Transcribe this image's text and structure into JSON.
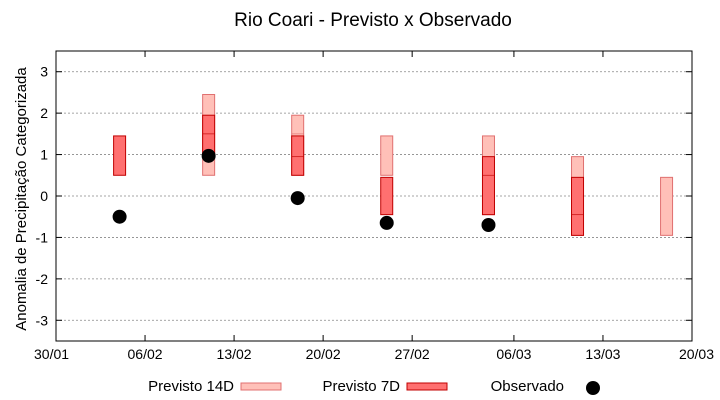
{
  "chart_data": {
    "type": "floating-bar",
    "title": "Rio Coari - Previsto x Observado",
    "xlabel": "",
    "ylabel": "Anomalia de Precipitação Categorizada",
    "ylim": [
      -3.5,
      3.5
    ],
    "yticks": [
      "-3",
      "-2",
      "-1",
      "0",
      "1",
      "2",
      "3"
    ],
    "xticks": [
      "30/01",
      "06/02",
      "13/02",
      "20/02",
      "27/02",
      "06/03",
      "13/03",
      "20/03"
    ],
    "grid": true,
    "legend_position": "bottom",
    "series": [
      {
        "name": "Previsto 14D",
        "color": "#ffc0b8",
        "edge": "#e07070",
        "ranges": [
          {
            "x": "11/02",
            "low": 0.5,
            "mid": 1.5,
            "high": 2.45
          },
          {
            "x": "18/02",
            "low": 0.5,
            "mid": 1.5,
            "high": 1.95
          },
          {
            "x": "25/02",
            "low": 0.5,
            "mid": 0.5,
            "high": 1.45
          },
          {
            "x": "04/03",
            "low": -0.45,
            "mid": 0.5,
            "high": 1.45
          },
          {
            "x": "11/03",
            "low": -0.95,
            "mid": -0.45,
            "high": 0.95
          },
          {
            "x": "18/03",
            "low": -0.95,
            "mid": -0.95,
            "high": 0.45
          }
        ]
      },
      {
        "name": "Previsto 7D",
        "color": "#ff7070",
        "edge": "#c00000",
        "ranges": [
          {
            "x": "04/02",
            "low": 0.5,
            "mid": 0.5,
            "high": 1.45
          },
          {
            "x": "11/02",
            "low": 0.95,
            "mid": 1.5,
            "high": 1.95
          },
          {
            "x": "18/02",
            "low": 0.5,
            "mid": 0.95,
            "high": 1.45
          },
          {
            "x": "25/02",
            "low": -0.45,
            "mid": -0.45,
            "high": 0.45
          },
          {
            "x": "04/03",
            "low": -0.45,
            "mid": 0.5,
            "high": 0.95
          },
          {
            "x": "11/03",
            "low": -0.95,
            "mid": -0.45,
            "high": 0.45
          }
        ]
      },
      {
        "name": "Observado",
        "color": "#000000",
        "points": [
          {
            "x": "04/02",
            "y": -0.5
          },
          {
            "x": "11/02",
            "y": 0.97
          },
          {
            "x": "18/02",
            "y": -0.05
          },
          {
            "x": "25/02",
            "y": -0.65
          },
          {
            "x": "04/03",
            "y": -0.7
          }
        ]
      }
    ]
  }
}
